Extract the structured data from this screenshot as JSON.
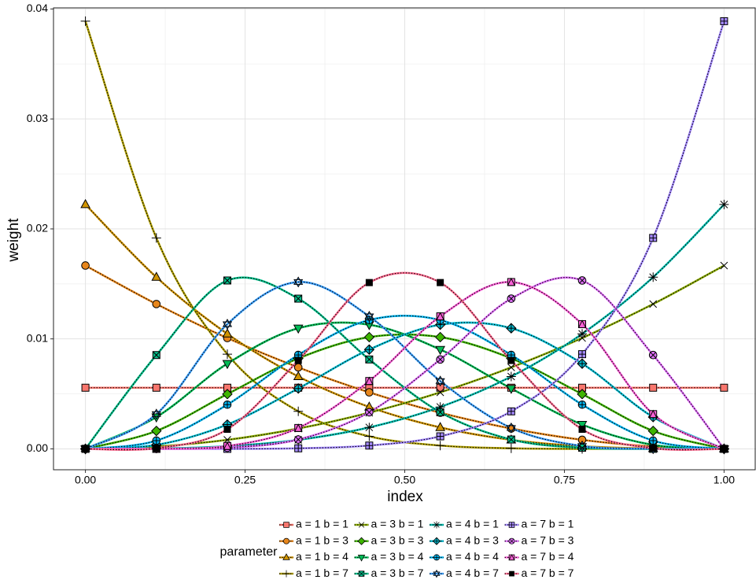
{
  "chart_data": {
    "type": "line",
    "x_label": "index",
    "y_label": "weight",
    "legend_title": "parameter",
    "x": [
      0,
      0.1111,
      0.2222,
      0.3333,
      0.4444,
      0.5556,
      0.6667,
      0.7778,
      0.8889,
      1
    ],
    "xlim": [
      -0.05,
      1.05
    ],
    "xticks": [
      {
        "value": 0,
        "label": "0.00"
      },
      0.25,
      {
        "value": 0.5,
        "label": "0.50"
      },
      0.75,
      {
        "value": 1,
        "label": "1.00"
      }
    ],
    "ylim": [
      -0.0019,
      0.0401
    ],
    "yticks": [
      {
        "value": 0,
        "label": "0.00"
      },
      0.01,
      0.02,
      0.03,
      {
        "value": 0.04,
        "label": "0.04"
      }
    ],
    "grid": true,
    "series": [
      {
        "name": "a = 1 b = 1",
        "color": "#F8766D",
        "shape": "square",
        "values": [
          0.00556,
          0.00556,
          0.00556,
          0.00556,
          0.00556,
          0.00556,
          0.00556,
          0.00556,
          0.00556,
          0.00556
        ]
      },
      {
        "name": "a = 1 b = 3",
        "color": "#E7861B",
        "shape": "circle",
        "values": [
          0.01667,
          0.01317,
          0.01008,
          0.00741,
          0.00514,
          0.00329,
          0.00185,
          0.00082,
          0.00021,
          0
        ]
      },
      {
        "name": "a = 1 b = 4",
        "color": "#D09400",
        "shape": "triangle",
        "values": [
          0.02222,
          0.01561,
          0.01046,
          0.00658,
          0.00381,
          0.00195,
          0.00082,
          0.00024,
          3e-05,
          0
        ]
      },
      {
        "name": "a = 1 b = 7",
        "color": "#B2A100",
        "shape": "plus",
        "values": [
          0.03889,
          0.01918,
          0.00861,
          0.00341,
          0.00114,
          0.0003,
          5e-05,
          0,
          0,
          0
        ]
      },
      {
        "name": "a = 3 b = 1",
        "color": "#8BAB00",
        "shape": "cross",
        "values": [
          0,
          0.00021,
          0.00082,
          0.00185,
          0.00329,
          0.00514,
          0.00741,
          0.01008,
          0.01317,
          0.01667
        ]
      },
      {
        "name": "a = 3 b = 3",
        "color": "#3EB500",
        "shape": "diamond",
        "values": [
          0,
          0.00163,
          0.00498,
          0.00823,
          0.01016,
          0.01016,
          0.00823,
          0.00498,
          0.00163,
          0
        ]
      },
      {
        "name": "a = 3 b = 4",
        "color": "#00BC56",
        "shape": "triangle-down",
        "values": [
          0,
          0.00289,
          0.00775,
          0.01097,
          0.01129,
          0.00903,
          0.00549,
          0.00221,
          0.00036,
          0
        ]
      },
      {
        "name": "a = 3 b = 7",
        "color": "#00C08B",
        "shape": "square-x",
        "values": [
          0,
          0.00853,
          0.01531,
          0.01366,
          0.00813,
          0.00333,
          0.00085,
          0.0001,
          0,
          0
        ]
      },
      {
        "name": "a = 4 b = 1",
        "color": "#00C1B2",
        "shape": "asterisk",
        "values": [
          0,
          3e-05,
          0.00024,
          0.00082,
          0.00195,
          0.00381,
          0.00658,
          0.01046,
          0.01561,
          0.02222
        ]
      },
      {
        "name": "a = 4 b = 3",
        "color": "#00BDD2",
        "shape": "diamond-plus",
        "values": [
          0,
          0.00036,
          0.00221,
          0.00549,
          0.00903,
          0.01129,
          0.01097,
          0.00775,
          0.00289,
          0
        ]
      },
      {
        "name": "a = 4 b = 4",
        "color": "#00B4EF",
        "shape": "circle-plus",
        "values": [
          0,
          0.00075,
          0.00402,
          0.00854,
          0.01171,
          0.01171,
          0.00854,
          0.00402,
          0.00075,
          0
        ]
      },
      {
        "name": "a = 4 b = 7",
        "color": "#3DA1FF",
        "shape": "star",
        "values": [
          0,
          0.00316,
          0.01134,
          0.01517,
          0.01205,
          0.00617,
          0.0019,
          0.00026,
          1e-05,
          0
        ]
      },
      {
        "name": "a = 7 b = 1",
        "color": "#A58AFF",
        "shape": "square-plus",
        "values": [
          0,
          0,
          0,
          5e-05,
          0.0003,
          0.00114,
          0.00341,
          0.00861,
          0.01918,
          0.03889
        ]
      },
      {
        "name": "a = 7 b = 3",
        "color": "#DF70F8",
        "shape": "circle-x",
        "values": [
          0,
          0,
          0.0001,
          0.00085,
          0.00333,
          0.00813,
          0.01366,
          0.01531,
          0.00853,
          0
        ]
      },
      {
        "name": "a = 7 b = 4",
        "color": "#FB61D7",
        "shape": "square-triangle",
        "values": [
          0,
          1e-05,
          0.00026,
          0.0019,
          0.00617,
          0.01205,
          0.01517,
          0.01134,
          0.00316,
          0
        ]
      },
      {
        "name": "a = 7 b = 7",
        "color": "#FF6C91",
        "shape": "filled-square",
        "values": [
          0,
          6e-05,
          0.00178,
          0.00804,
          0.01512,
          0.01512,
          0.00804,
          0.00178,
          6e-05,
          0
        ]
      }
    ]
  }
}
